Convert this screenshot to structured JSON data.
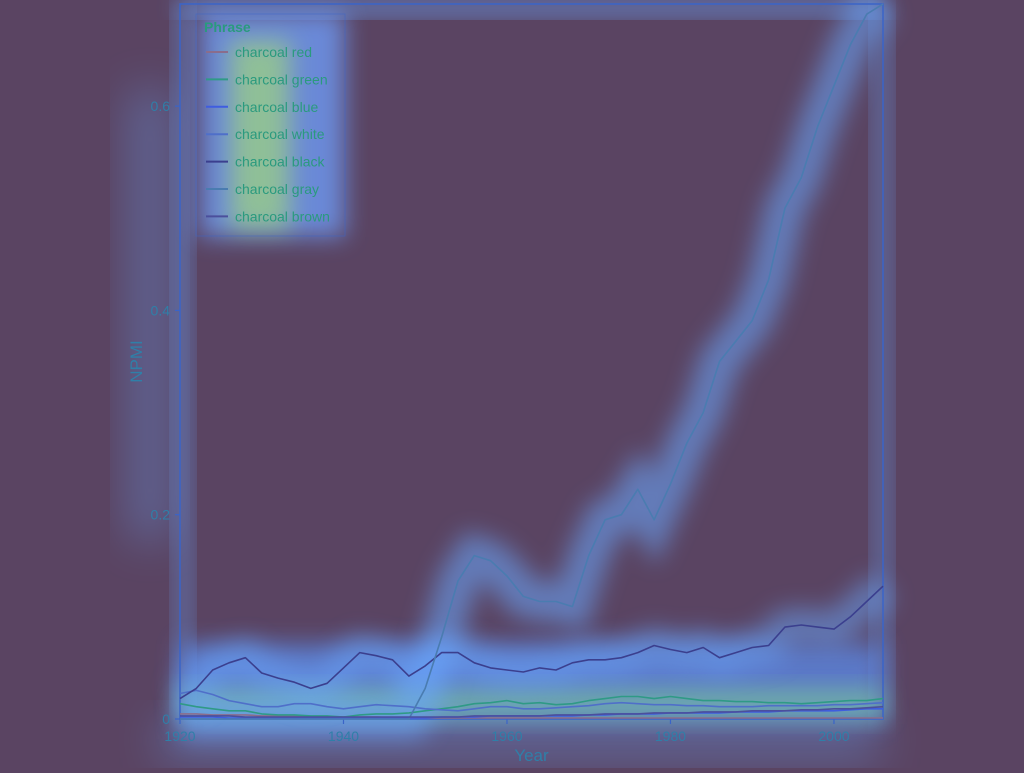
{
  "chart_data": {
    "type": "line",
    "title": "",
    "xlabel": "Year",
    "ylabel": "NPMI",
    "xlim": [
      1920,
      2006
    ],
    "ylim": [
      0,
      0.7
    ],
    "x_ticks": [
      1920,
      1940,
      1960,
      1980,
      2000
    ],
    "y_ticks": [
      0,
      0.2,
      0.4,
      0.6
    ],
    "x_tick_labels": [
      "1920",
      "1940",
      "1960",
      "1980",
      "2000"
    ],
    "y_tick_labels": [
      "0",
      "0.2",
      "0.4",
      "0.6"
    ],
    "legend_title": "Phrase",
    "legend_position": "top-left",
    "grid": false,
    "x": [
      1920,
      1922,
      1924,
      1926,
      1928,
      1930,
      1932,
      1934,
      1936,
      1938,
      1940,
      1942,
      1944,
      1946,
      1948,
      1950,
      1952,
      1954,
      1956,
      1958,
      1960,
      1962,
      1964,
      1966,
      1968,
      1970,
      1972,
      1974,
      1976,
      1978,
      1980,
      1982,
      1984,
      1986,
      1988,
      1990,
      1992,
      1994,
      1996,
      1998,
      2000,
      2002,
      2004,
      2006
    ],
    "series": [
      {
        "name": "charcoal red",
        "color": "#8a6d8c",
        "values": [
          0.005,
          0.005,
          0.004,
          0.004,
          0.004,
          0.003,
          0.003,
          0.003,
          0.002,
          0.002,
          0.002,
          0.002,
          0.002,
          0.001,
          0.001,
          0.001,
          0.001,
          0.001,
          0.001,
          0.001,
          0.001,
          0.001,
          0.001,
          0.001,
          0.001,
          0.001,
          0.001,
          0.001,
          0.001,
          0.001,
          0.001,
          0.001,
          0.001,
          0.001,
          0.001,
          0.001,
          0.001,
          0.001,
          0.001,
          0.001,
          0.001,
          0.001,
          0.001,
          0.001
        ]
      },
      {
        "name": "charcoal green",
        "color": "#2f9a86",
        "values": [
          0.015,
          0.012,
          0.01,
          0.008,
          0.008,
          0.005,
          0.004,
          0.004,
          0.003,
          0.003,
          0.002,
          0.004,
          0.005,
          0.005,
          0.006,
          0.008,
          0.01,
          0.012,
          0.015,
          0.016,
          0.018,
          0.015,
          0.016,
          0.014,
          0.015,
          0.018,
          0.02,
          0.022,
          0.022,
          0.02,
          0.022,
          0.02,
          0.018,
          0.018,
          0.017,
          0.017,
          0.016,
          0.016,
          0.015,
          0.016,
          0.017,
          0.018,
          0.018,
          0.02
        ]
      },
      {
        "name": "charcoal blue",
        "color": "#3f5de0",
        "values": [
          0.002,
          0.002,
          0.002,
          0.001,
          0.001,
          0.001,
          0.001,
          0.001,
          0.001,
          0.001,
          0.001,
          0.001,
          0.001,
          0.001,
          0.001,
          0.001,
          0.002,
          0.002,
          0.002,
          0.003,
          0.003,
          0.003,
          0.003,
          0.003,
          0.003,
          0.004,
          0.004,
          0.005,
          0.005,
          0.005,
          0.006,
          0.006,
          0.006,
          0.006,
          0.007,
          0.007,
          0.007,
          0.008,
          0.008,
          0.008,
          0.008,
          0.009,
          0.01,
          0.01
        ]
      },
      {
        "name": "charcoal white",
        "color": "#4f6fc9",
        "values": [
          0.025,
          0.028,
          0.024,
          0.018,
          0.015,
          0.012,
          0.012,
          0.015,
          0.015,
          0.012,
          0.01,
          0.012,
          0.014,
          0.013,
          0.012,
          0.01,
          0.009,
          0.008,
          0.01,
          0.012,
          0.012,
          0.01,
          0.01,
          0.011,
          0.012,
          0.013,
          0.015,
          0.016,
          0.015,
          0.014,
          0.014,
          0.013,
          0.013,
          0.012,
          0.012,
          0.012,
          0.013,
          0.013,
          0.013,
          0.013,
          0.014,
          0.014,
          0.015,
          0.016
        ]
      },
      {
        "name": "charcoal black",
        "color": "#3b3f8e",
        "values": [
          0.02,
          0.03,
          0.048,
          0.055,
          0.06,
          0.045,
          0.04,
          0.036,
          0.03,
          0.035,
          0.05,
          0.065,
          0.062,
          0.058,
          0.042,
          0.052,
          0.065,
          0.065,
          0.055,
          0.05,
          0.048,
          0.046,
          0.05,
          0.048,
          0.055,
          0.058,
          0.058,
          0.06,
          0.065,
          0.072,
          0.068,
          0.065,
          0.07,
          0.06,
          0.065,
          0.07,
          0.072,
          0.09,
          0.092,
          0.09,
          0.088,
          0.1,
          0.115,
          0.13
        ]
      },
      {
        "name": "charcoal gray",
        "color": "#4a7cb0",
        "values": [
          0.0,
          0.0,
          0.0,
          0.0,
          0.0,
          0.0,
          0.0,
          0.0,
          0.0,
          0.0,
          0.0,
          0.0,
          0.0,
          0.0,
          0.0,
          0.03,
          0.08,
          0.135,
          0.16,
          0.155,
          0.14,
          0.12,
          0.115,
          0.115,
          0.11,
          0.16,
          0.195,
          0.2,
          0.225,
          0.195,
          0.23,
          0.27,
          0.3,
          0.35,
          0.37,
          0.39,
          0.43,
          0.5,
          0.53,
          0.58,
          0.62,
          0.66,
          0.69,
          0.7
        ]
      },
      {
        "name": "charcoal brown",
        "color": "#4b4f9c",
        "values": [
          0.003,
          0.003,
          0.003,
          0.003,
          0.002,
          0.002,
          0.002,
          0.002,
          0.002,
          0.002,
          0.002,
          0.002,
          0.002,
          0.002,
          0.002,
          0.002,
          0.002,
          0.002,
          0.003,
          0.003,
          0.003,
          0.003,
          0.003,
          0.004,
          0.004,
          0.004,
          0.005,
          0.005,
          0.005,
          0.006,
          0.006,
          0.006,
          0.007,
          0.007,
          0.007,
          0.008,
          0.008,
          0.008,
          0.009,
          0.009,
          0.01,
          0.01,
          0.011,
          0.012
        ]
      }
    ]
  }
}
